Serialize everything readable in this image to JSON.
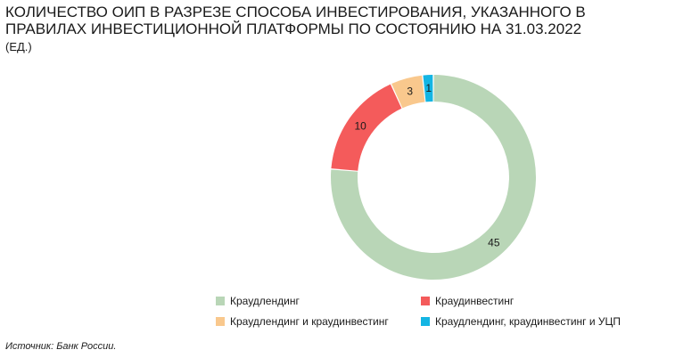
{
  "chart_data": {
    "type": "pie",
    "subtype": "donut",
    "title": "КОЛИЧЕСТВО ОИП В РАЗРЕЗЕ СПОСОБА ИНВЕСТИРОВАНИЯ, УКАЗАННОГО В ПРАВИЛАХ ИНВЕСТИЦИОННОЙ ПЛАТФОРМЫ ПО СОСТОЯНИЮ НА 31.03.2022",
    "subtitle": "(ЕД.)",
    "categories": [
      "Краудлендинг",
      "Краудинвестинг",
      "Краудлендинг и краудинвестинг",
      "Краудлендинг, краудинвестинг и УЦП"
    ],
    "values": [
      45,
      10,
      3,
      1
    ],
    "colors": [
      "#b9d6b7",
      "#f45b5b",
      "#f9c88d",
      "#14b5e3"
    ],
    "legend_position": "bottom"
  },
  "source": "Источник: Банк России."
}
